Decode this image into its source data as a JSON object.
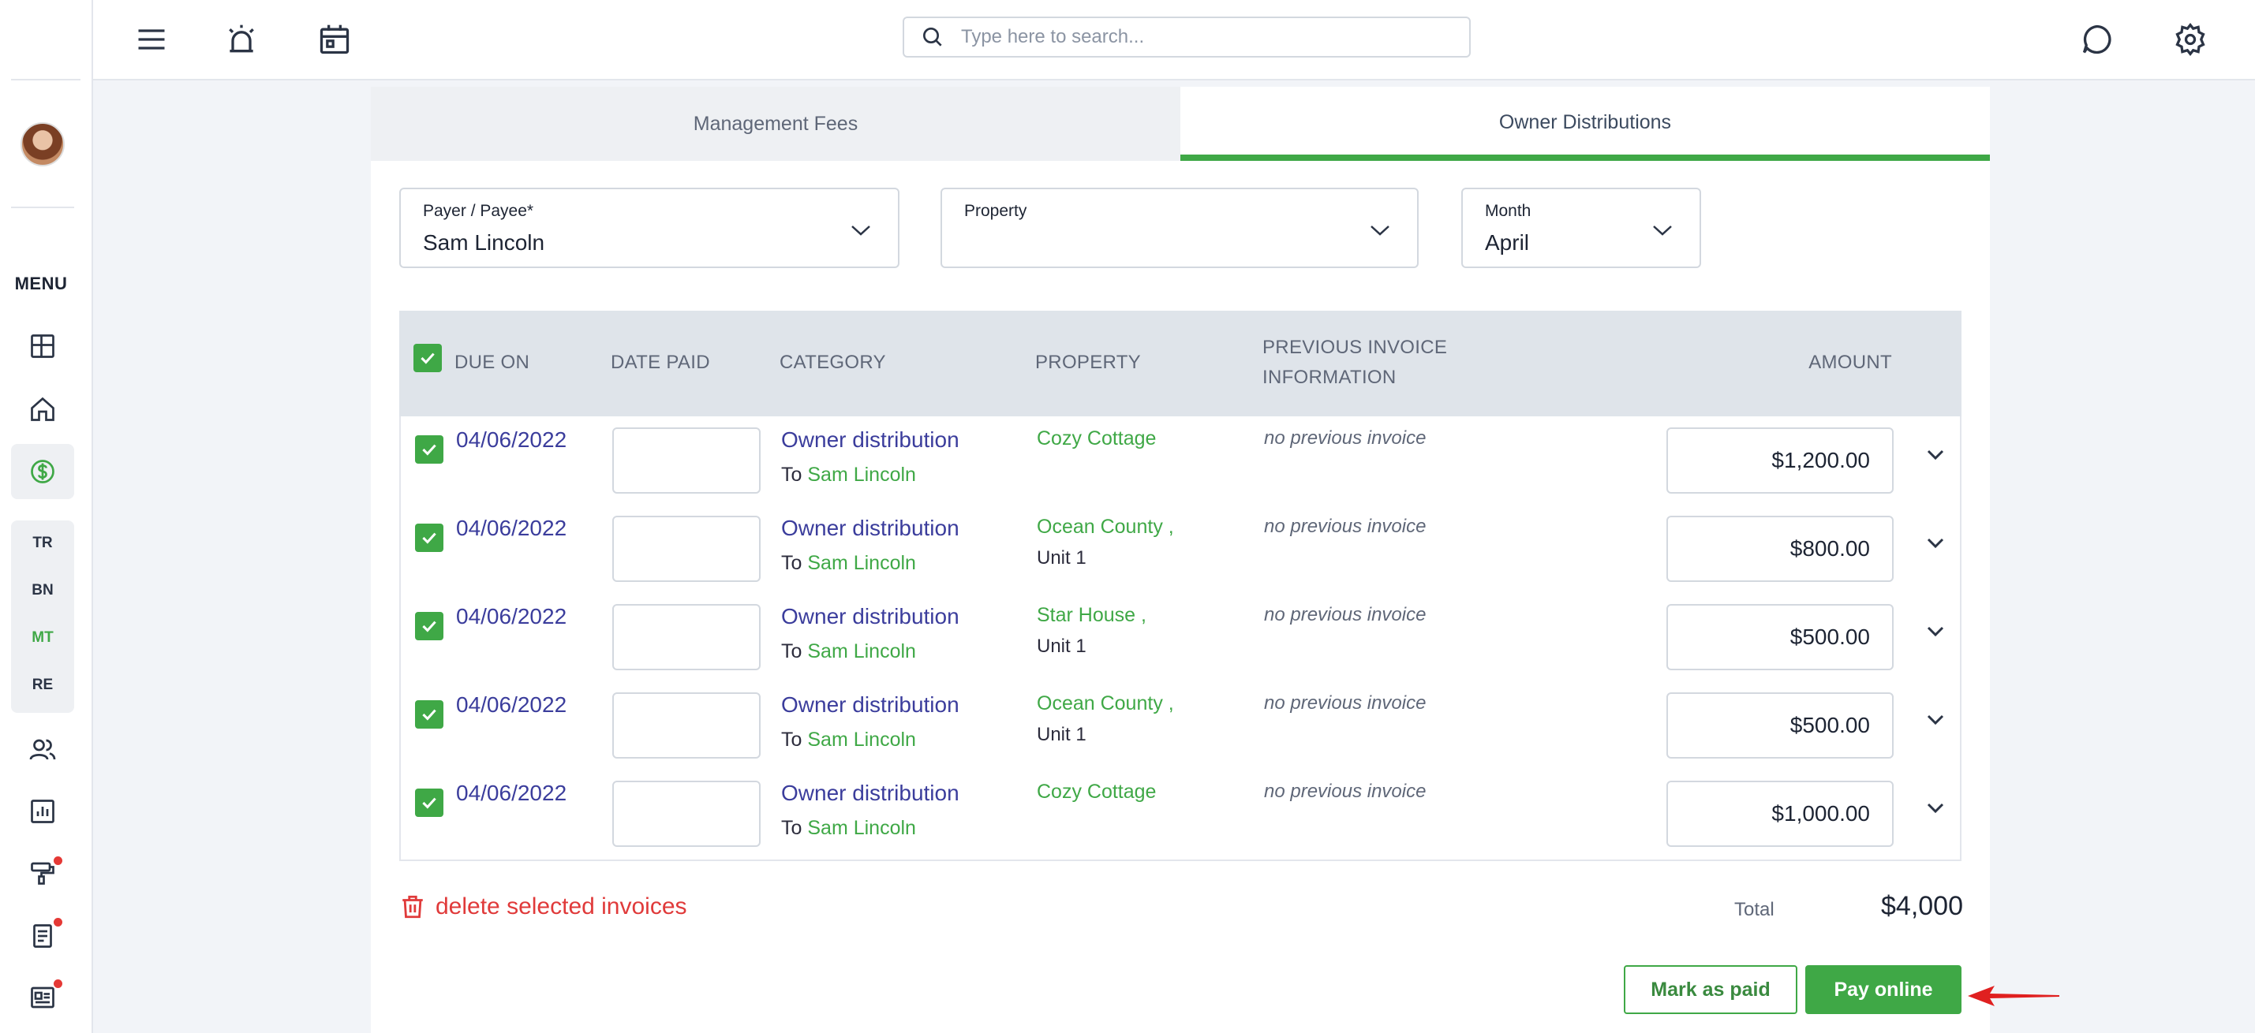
{
  "search": {
    "placeholder": "Type here to search..."
  },
  "sidebar": {
    "menu_label": "MENU",
    "sub_items": [
      "TR",
      "BN",
      "MT",
      "RE"
    ],
    "active_sub_item": "MT"
  },
  "tabs": [
    {
      "label": "Management Fees",
      "active": false
    },
    {
      "label": "Owner Distributions",
      "active": true
    }
  ],
  "filters": {
    "payer": {
      "label": "Payer / Payee*",
      "value": "Sam Lincoln"
    },
    "property": {
      "label": "Property",
      "value": ""
    },
    "month": {
      "label": "Month",
      "value": "April"
    }
  },
  "table": {
    "headers": {
      "due_on": "DUE ON",
      "date_paid": "DATE PAID",
      "category": "CATEGORY",
      "property": "PROPERTY",
      "prev_line1": "PREVIOUS INVOICE",
      "prev_line2": "INFORMATION",
      "amount": "AMOUNT"
    },
    "rows": [
      {
        "due_on": "04/06/2022",
        "category": "Owner distribution",
        "to_prefix": "To ",
        "to_name": "Sam Lincoln",
        "property": "Cozy Cottage",
        "unit": "",
        "prev": "no previous invoice",
        "amount": "$1,200.00",
        "checked": true
      },
      {
        "due_on": "04/06/2022",
        "category": "Owner distribution",
        "to_prefix": "To ",
        "to_name": "Sam Lincoln",
        "property": "Ocean County ,",
        "unit": "Unit 1",
        "prev": "no previous invoice",
        "amount": "$800.00",
        "checked": true
      },
      {
        "due_on": "04/06/2022",
        "category": "Owner distribution",
        "to_prefix": "To ",
        "to_name": "Sam Lincoln",
        "property": "Star House ,",
        "unit": "Unit 1",
        "prev": "no previous invoice",
        "amount": "$500.00",
        "checked": true
      },
      {
        "due_on": "04/06/2022",
        "category": "Owner distribution",
        "to_prefix": "To ",
        "to_name": "Sam Lincoln",
        "property": "Ocean County ,",
        "unit": "Unit 1",
        "prev": "no previous invoice",
        "amount": "$500.00",
        "checked": true
      },
      {
        "due_on": "04/06/2022",
        "category": "Owner distribution",
        "to_prefix": "To ",
        "to_name": "Sam Lincoln",
        "property": "Cozy Cottage",
        "unit": "",
        "prev": "no previous invoice",
        "amount": "$1,000.00",
        "checked": true
      }
    ]
  },
  "footer": {
    "delete_label": "delete selected invoices",
    "total_label": "Total",
    "total_value": "$4,000",
    "mark_paid_label": "Mark as paid",
    "pay_online_label": "Pay online"
  },
  "colors": {
    "accent_green": "#3fa846",
    "link_blue": "#3b3d9c",
    "danger_red": "#e03a3a"
  }
}
